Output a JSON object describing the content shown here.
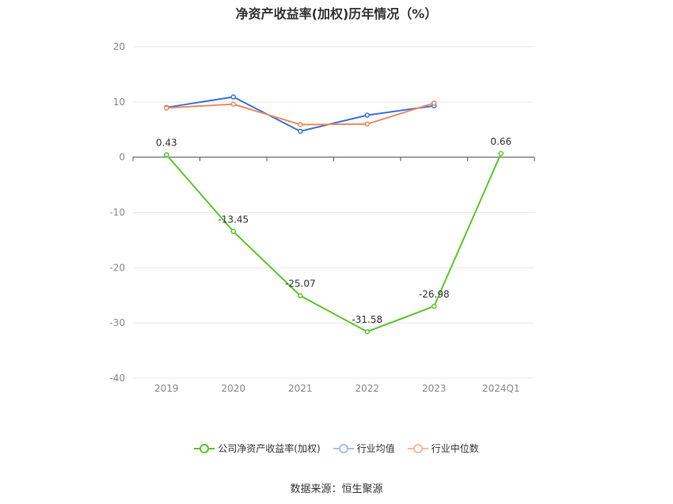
{
  "title": "净资产收益率(加权)历年情况（%）",
  "source": "数据来源：恒生聚源",
  "chart_data": {
    "type": "line",
    "title": "净资产收益率(加权)历年情况（%）",
    "categories": [
      "2019",
      "2020",
      "2021",
      "2022",
      "2023",
      "2024Q1"
    ],
    "ylim": [
      -40,
      20
    ],
    "yticks": [
      "20",
      "10",
      "0",
      "-10",
      "-20",
      "-30",
      "-40"
    ],
    "ytick_values": [
      20,
      10,
      0,
      -10,
      -20,
      -30,
      -40
    ],
    "grid": true,
    "legend_position": "bottom",
    "series": [
      {
        "name": "公司净资产收益率(加权)",
        "color": "#5cc72b",
        "values": [
          0.43,
          -13.45,
          -25.07,
          -31.58,
          -26.98,
          0.66
        ],
        "labels": [
          "0.43",
          "-13.45",
          "-25.07",
          "-31.58",
          "-26.98",
          "0.66"
        ]
      },
      {
        "name": "行业均值",
        "color": "#3c74d8",
        "values": [
          9.0,
          10.9,
          4.7,
          7.6,
          9.3,
          null
        ]
      },
      {
        "name": "行业中位数",
        "color": "#f08a5d",
        "values": [
          8.9,
          9.6,
          5.9,
          6.0,
          9.8,
          null
        ]
      }
    ]
  }
}
